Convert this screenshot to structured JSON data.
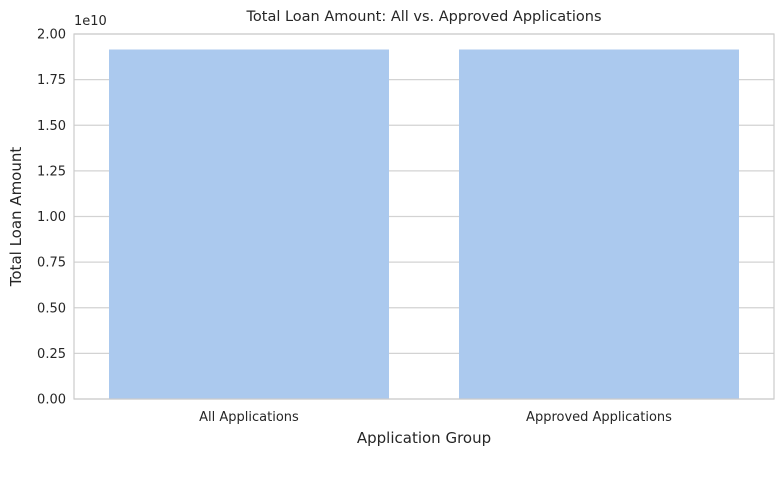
{
  "chart_data": {
    "type": "bar",
    "title": "Total Loan Amount: All vs. Approved Applications",
    "xlabel": "Application Group",
    "ylabel": "Total Loan Amount",
    "categories": [
      "All Applications",
      "Approved Applications"
    ],
    "values": [
      19150000000,
      19150000000
    ],
    "ylim": [
      0,
      20000000000
    ],
    "yticks": [
      0,
      2500000000,
      5000000000,
      7500000000,
      10000000000,
      12500000000,
      15000000000,
      17500000000,
      20000000000
    ],
    "ytick_labels": [
      "0.00",
      "0.25",
      "0.50",
      "0.75",
      "1.00",
      "1.25",
      "1.50",
      "1.75",
      "2.00"
    ],
    "y_offset_label": "1e10",
    "grid": "horizontal",
    "colors": {
      "bar": "#abc9ee",
      "grid": "#d3d3d3",
      "axis": "#cccccc",
      "text": "#262626"
    }
  }
}
